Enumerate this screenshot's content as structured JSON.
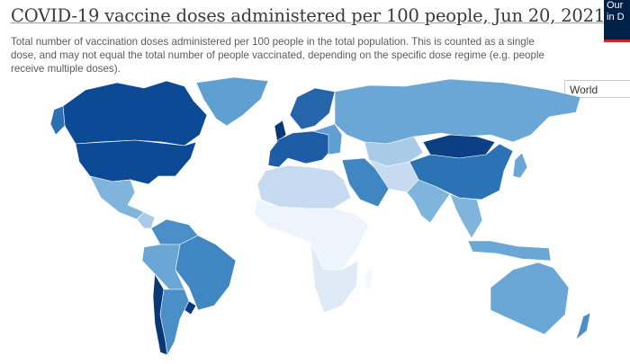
{
  "header": {
    "title": "COVID-19 vaccine doses administered per 100 people, Jun 20, 2021",
    "subtitle": "Total number of vaccination doses administered per 100 people in the total population. This is counted as a single dose, and may not equal the total number of people vaccinated, depending on the specific dose regime (e.g. people receive multiple doses).",
    "region_select": "World",
    "logo": [
      "Our",
      "in D"
    ]
  }
}
